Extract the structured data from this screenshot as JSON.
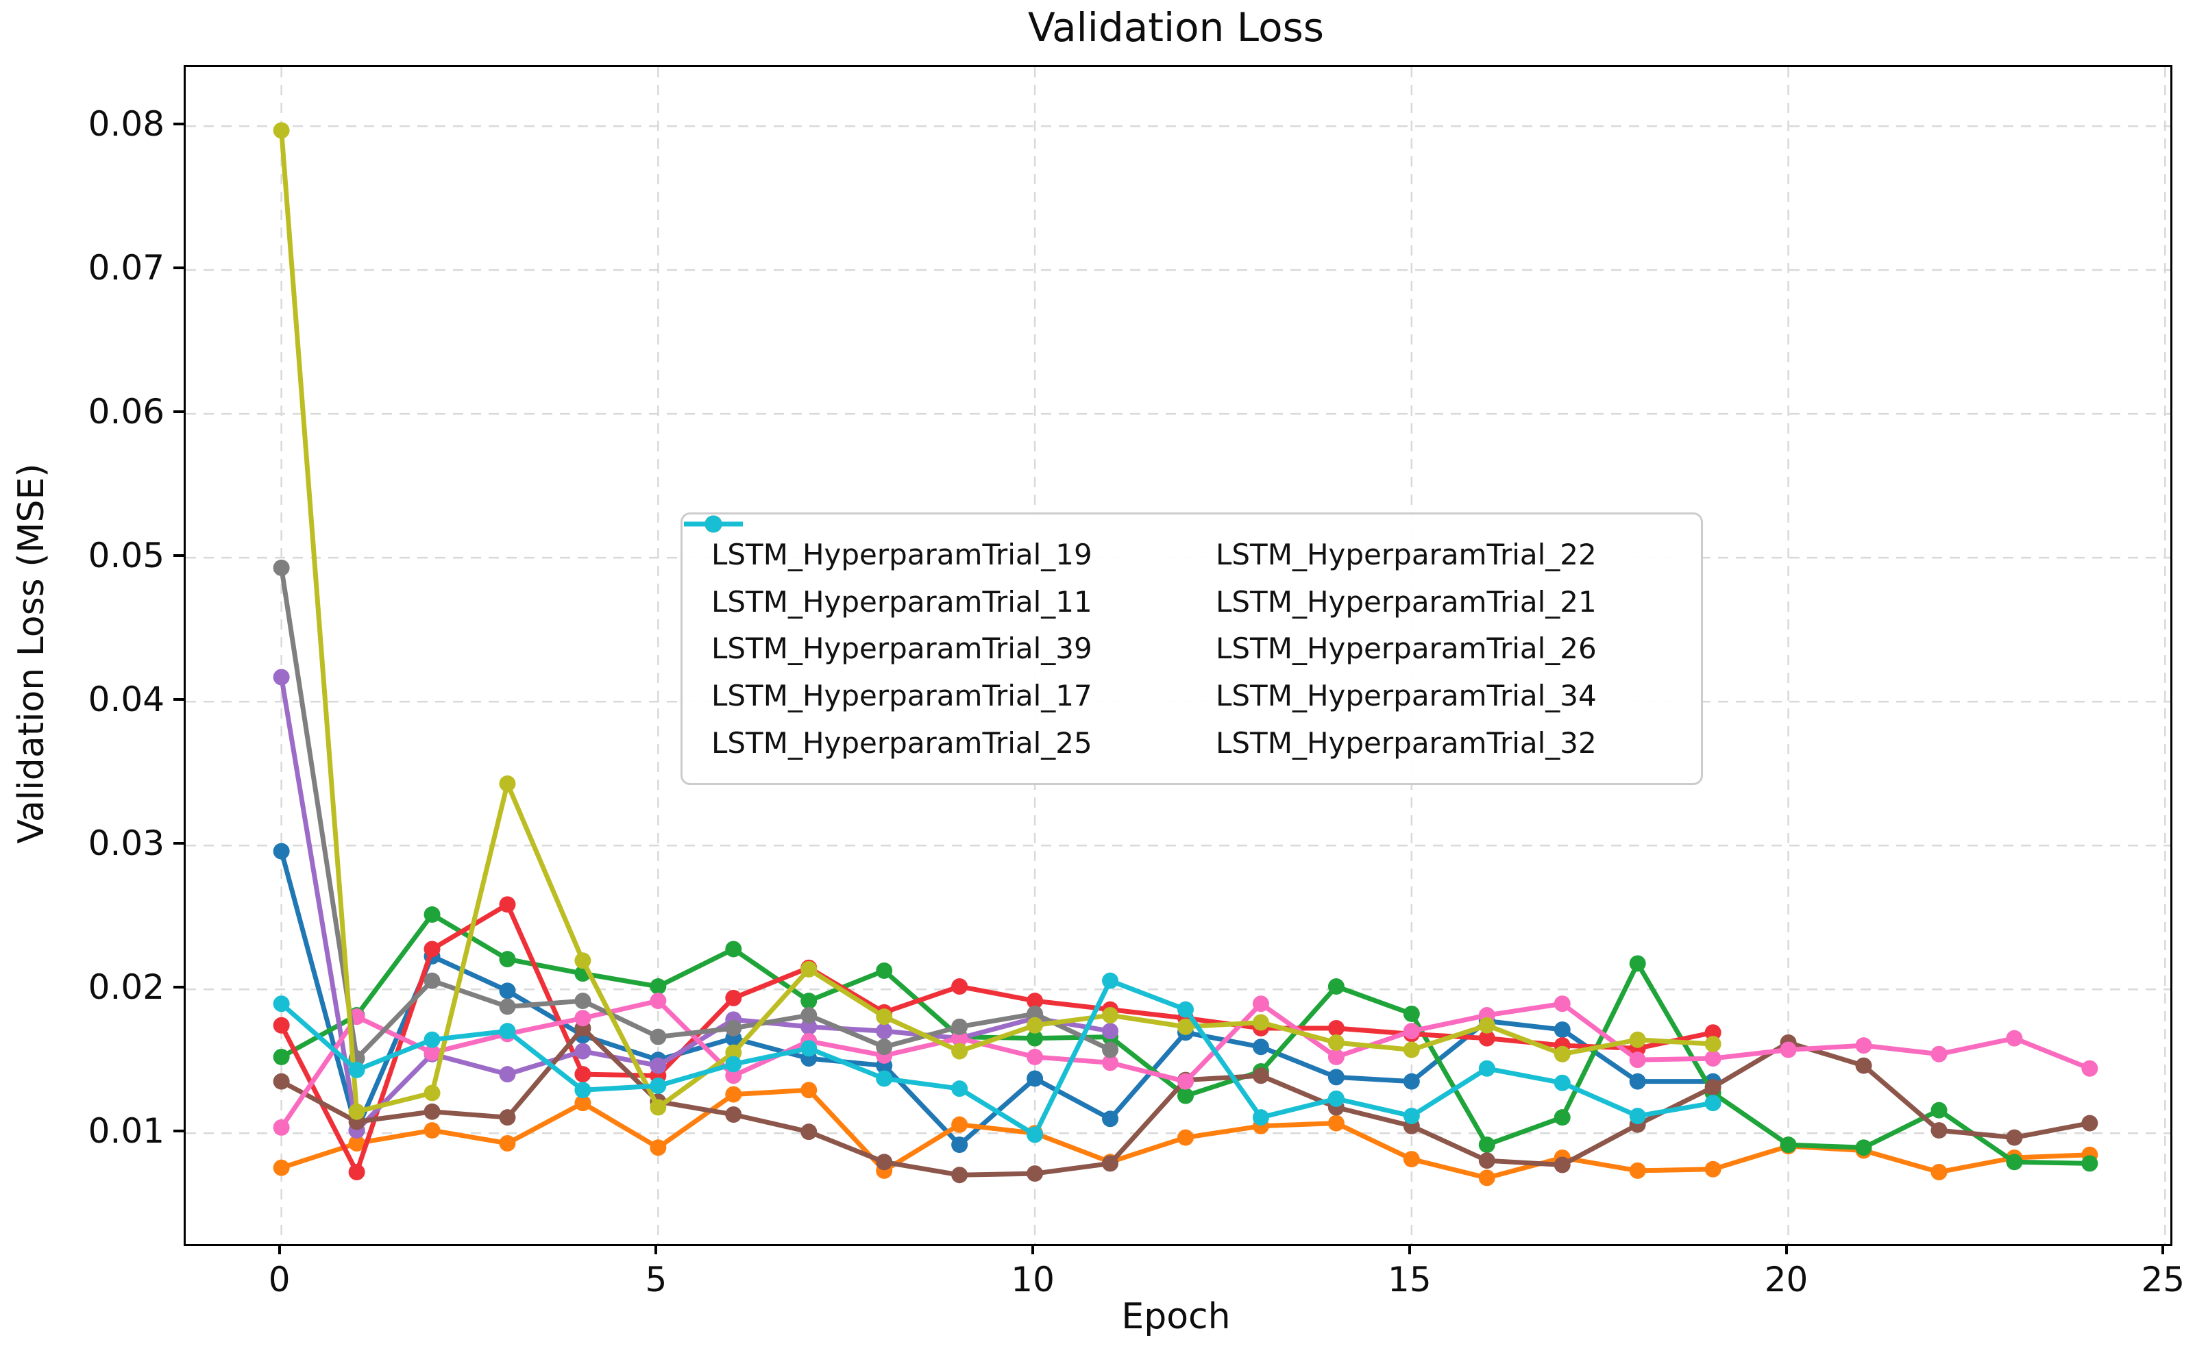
{
  "chart_data": {
    "type": "line",
    "title": "Validation Loss",
    "xlabel": "Epoch",
    "ylabel": "Validation Loss (MSE)",
    "xlim": [
      -1.27,
      25.07
    ],
    "ylim": [
      0.0023,
      0.0841
    ],
    "x_ticks": [
      0,
      5,
      10,
      15,
      20,
      25
    ],
    "x_tick_labels": [
      "0",
      "5",
      "10",
      "15",
      "20",
      "25"
    ],
    "y_ticks": [
      0.01,
      0.02,
      0.03,
      0.04,
      0.05,
      0.06,
      0.07,
      0.08
    ],
    "y_tick_labels": [
      "0.01",
      "0.02",
      "0.03",
      "0.04",
      "0.05",
      "0.06",
      "0.07",
      "0.08"
    ],
    "grid": true,
    "grid_style": "dashed",
    "grid_color": "#d9d9d9",
    "legend_position": "center-left inside plot",
    "legend_columns": 2,
    "x_unit": "epoch index, one point per epoch starting at 0",
    "series": [
      {
        "name": "LSTM_HyperparamTrial_19",
        "color": "#1f77b4",
        "values": [
          0.0296,
          0.0102,
          0.0223,
          0.0199,
          0.0168,
          0.0151,
          0.0166,
          0.0152,
          0.0147,
          0.0092,
          0.0138,
          0.011,
          0.017,
          0.016,
          0.0139,
          0.0136,
          0.0178,
          0.0172,
          0.0136,
          0.0136
        ]
      },
      {
        "name": "LSTM_HyperparamTrial_11",
        "color": "#ff7f0e",
        "values": [
          0.0076,
          0.0093,
          0.0102,
          0.0093,
          0.0121,
          0.009,
          0.0127,
          0.013,
          0.0074,
          0.0106,
          0.01,
          0.008,
          0.0097,
          0.0105,
          0.0107,
          0.0082,
          0.0069,
          0.0083,
          0.0074,
          0.0075,
          0.0091,
          0.0088,
          0.0073,
          0.0083,
          0.0085
        ]
      },
      {
        "name": "LSTM_HyperparamTrial_39",
        "color": "#1fa43a",
        "values": [
          0.0153,
          0.0182,
          0.0252,
          0.0221,
          0.0211,
          0.0202,
          0.0228,
          0.0192,
          0.0213,
          0.0167,
          0.0166,
          0.0167,
          0.0126,
          0.0143,
          0.0202,
          0.0183,
          0.0092,
          0.0111,
          0.0218,
          0.0128,
          0.0092,
          0.009,
          0.0116,
          0.008,
          0.0079
        ]
      },
      {
        "name": "LSTM_HyperparamTrial_17",
        "color": "#ef3038",
        "values": [
          0.0175,
          0.0073,
          0.0228,
          0.0259,
          0.0141,
          0.014,
          0.0194,
          0.0215,
          0.0184,
          0.0202,
          0.0192,
          0.0186,
          0.018,
          0.0173,
          0.0173,
          0.0169,
          0.0166,
          0.0161,
          0.0159,
          0.017
        ]
      },
      {
        "name": "LSTM_HyperparamTrial_25",
        "color": "#9c6bc8",
        "values": [
          0.0417,
          0.0102,
          0.0155,
          0.0141,
          0.0157,
          0.0147,
          0.0179,
          0.0174,
          0.0171,
          0.0166,
          0.018,
          0.0171
        ]
      },
      {
        "name": "LSTM_HyperparamTrial_22",
        "color": "#8c564b",
        "values": [
          0.0136,
          0.0108,
          0.0115,
          0.0111,
          0.0173,
          0.0122,
          0.0113,
          0.0101,
          0.008,
          0.0071,
          0.0072,
          0.0079,
          0.0137,
          0.014,
          0.0118,
          0.0105,
          0.0081,
          0.0078,
          0.0106,
          0.0132,
          0.0163,
          0.0147,
          0.0102,
          0.0097,
          0.0107
        ]
      },
      {
        "name": "LSTM_HyperparamTrial_21",
        "color": "#fa6bbf",
        "values": [
          0.0104,
          0.0181,
          0.0156,
          0.0169,
          0.018,
          0.0192,
          0.014,
          0.0164,
          0.0154,
          0.0166,
          0.0153,
          0.0149,
          0.0136,
          0.019,
          0.0153,
          0.0171,
          0.0182,
          0.019,
          0.0151,
          0.0152,
          0.0158,
          0.0161,
          0.0155,
          0.0166,
          0.0145
        ]
      },
      {
        "name": "LSTM_HyperparamTrial_26",
        "color": "#7f7f7f",
        "values": [
          0.0493,
          0.0152,
          0.0206,
          0.0188,
          0.0192,
          0.0167,
          0.0173,
          0.0182,
          0.016,
          0.0174,
          0.0183,
          0.0158
        ]
      },
      {
        "name": "LSTM_HyperparamTrial_34",
        "color": "#bcbd22",
        "values": [
          0.0797,
          0.0115,
          0.0128,
          0.0343,
          0.022,
          0.0118,
          0.0156,
          0.0214,
          0.0181,
          0.0157,
          0.0175,
          0.0182,
          0.0174,
          0.0177,
          0.0163,
          0.0158,
          0.0175,
          0.0155,
          0.0165,
          0.0162
        ]
      },
      {
        "name": "LSTM_HyperparamTrial_32",
        "color": "#18bfd4",
        "values": [
          0.019,
          0.0144,
          0.0165,
          0.0171,
          0.013,
          0.0133,
          0.0148,
          0.0159,
          0.0138,
          0.0131,
          0.0099,
          0.0206,
          0.0186,
          0.0111,
          0.0124,
          0.0112,
          0.0145,
          0.0135,
          0.0112,
          0.0121
        ]
      }
    ]
  }
}
